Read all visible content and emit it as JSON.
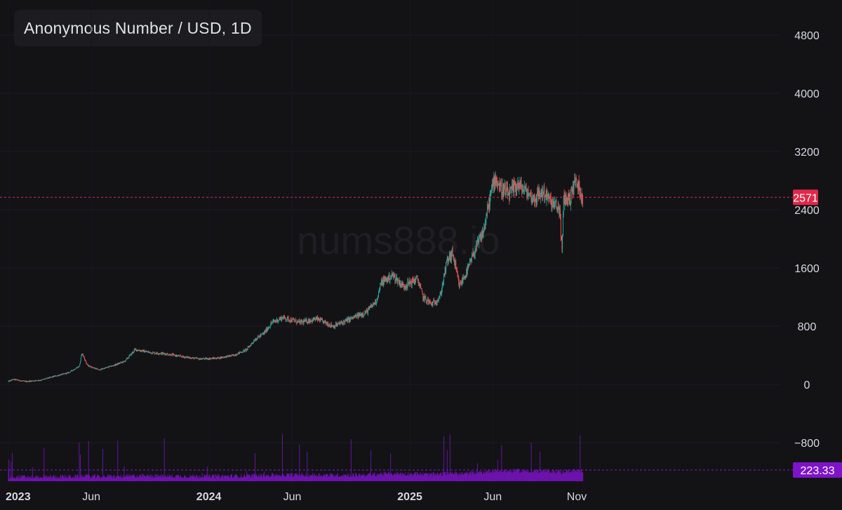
{
  "header": {
    "title": "Anonymous Number / USD, 1D"
  },
  "watermark": "nums888.io",
  "colors": {
    "up": "#26a69a",
    "down": "#ef5350",
    "price_line": "#e0284a",
    "volume": "#7e14c9",
    "background": "#131316"
  },
  "chart_data": {
    "type": "candlestick",
    "title": "Anonymous Number / USD, 1D",
    "interval": "1D",
    "x_range": [
      "2023-01-01",
      "2025-11-15"
    ],
    "y_range": [
      -1100,
      5300
    ],
    "y_ticks": [
      4800,
      4000,
      3200,
      2400,
      1600,
      800,
      0,
      -800
    ],
    "y_tick_labels": [
      "4800",
      "4000",
      "3200",
      "2400",
      "1600",
      "800",
      "0",
      "−800"
    ],
    "x_ticks": [
      {
        "date": "2023-01-01",
        "label": "2023",
        "bold": true
      },
      {
        "date": "2023-06-01",
        "label": "Jun",
        "bold": false
      },
      {
        "date": "2024-01-01",
        "label": "2024",
        "bold": true
      },
      {
        "date": "2024-06-01",
        "label": "Jun",
        "bold": false
      },
      {
        "date": "2025-01-01",
        "label": "2025",
        "bold": true
      },
      {
        "date": "2025-06-01",
        "label": "Jun",
        "bold": false
      },
      {
        "date": "2025-11-01",
        "label": "Nov",
        "bold": false
      }
    ],
    "last_price": 2571,
    "last_price_label": "2571",
    "volume_last_label": "223.33",
    "price_path": [
      [
        "2023-01-01",
        40
      ],
      [
        "2023-01-10",
        70
      ],
      [
        "2023-02-01",
        40
      ],
      [
        "2023-03-01",
        60
      ],
      [
        "2023-03-25",
        110
      ],
      [
        "2023-04-20",
        160
      ],
      [
        "2023-05-10",
        250
      ],
      [
        "2023-05-15",
        430
      ],
      [
        "2023-05-25",
        260
      ],
      [
        "2023-06-15",
        200
      ],
      [
        "2023-07-15",
        270
      ],
      [
        "2023-08-01",
        320
      ],
      [
        "2023-08-20",
        480
      ],
      [
        "2023-09-15",
        440
      ],
      [
        "2023-10-15",
        420
      ],
      [
        "2023-11-15",
        380
      ],
      [
        "2023-12-15",
        350
      ],
      [
        "2024-01-15",
        360
      ],
      [
        "2024-02-15",
        400
      ],
      [
        "2024-03-10",
        480
      ],
      [
        "2024-03-25",
        620
      ],
      [
        "2024-04-10",
        700
      ],
      [
        "2024-04-25",
        850
      ],
      [
        "2024-05-15",
        920
      ],
      [
        "2024-06-15",
        850
      ],
      [
        "2024-07-15",
        900
      ],
      [
        "2024-08-15",
        800
      ],
      [
        "2024-09-15",
        900
      ],
      [
        "2024-10-15",
        1000
      ],
      [
        "2024-11-01",
        1150
      ],
      [
        "2024-11-10",
        1400
      ],
      [
        "2024-12-01",
        1500
      ],
      [
        "2024-12-20",
        1350
      ],
      [
        "2025-01-15",
        1450
      ],
      [
        "2025-01-25",
        1200
      ],
      [
        "2025-02-10",
        1100
      ],
      [
        "2025-02-25",
        1200
      ],
      [
        "2025-03-10",
        1700
      ],
      [
        "2025-03-20",
        1800
      ],
      [
        "2025-04-01",
        1350
      ],
      [
        "2025-04-15",
        1550
      ],
      [
        "2025-04-30",
        1850
      ],
      [
        "2025-05-15",
        2100
      ],
      [
        "2025-05-28",
        2600
      ],
      [
        "2025-06-05",
        2850
      ],
      [
        "2025-06-15",
        2700
      ],
      [
        "2025-07-01",
        2600
      ],
      [
        "2025-07-15",
        2750
      ],
      [
        "2025-08-01",
        2650
      ],
      [
        "2025-08-15",
        2550
      ],
      [
        "2025-09-01",
        2650
      ],
      [
        "2025-09-15",
        2500
      ],
      [
        "2025-10-01",
        2400
      ],
      [
        "2025-10-05",
        1800
      ],
      [
        "2025-10-08",
        2550
      ],
      [
        "2025-10-20",
        2550
      ],
      [
        "2025-10-28",
        2800
      ],
      [
        "2025-11-05",
        2700
      ],
      [
        "2025-11-12",
        2571
      ]
    ]
  }
}
